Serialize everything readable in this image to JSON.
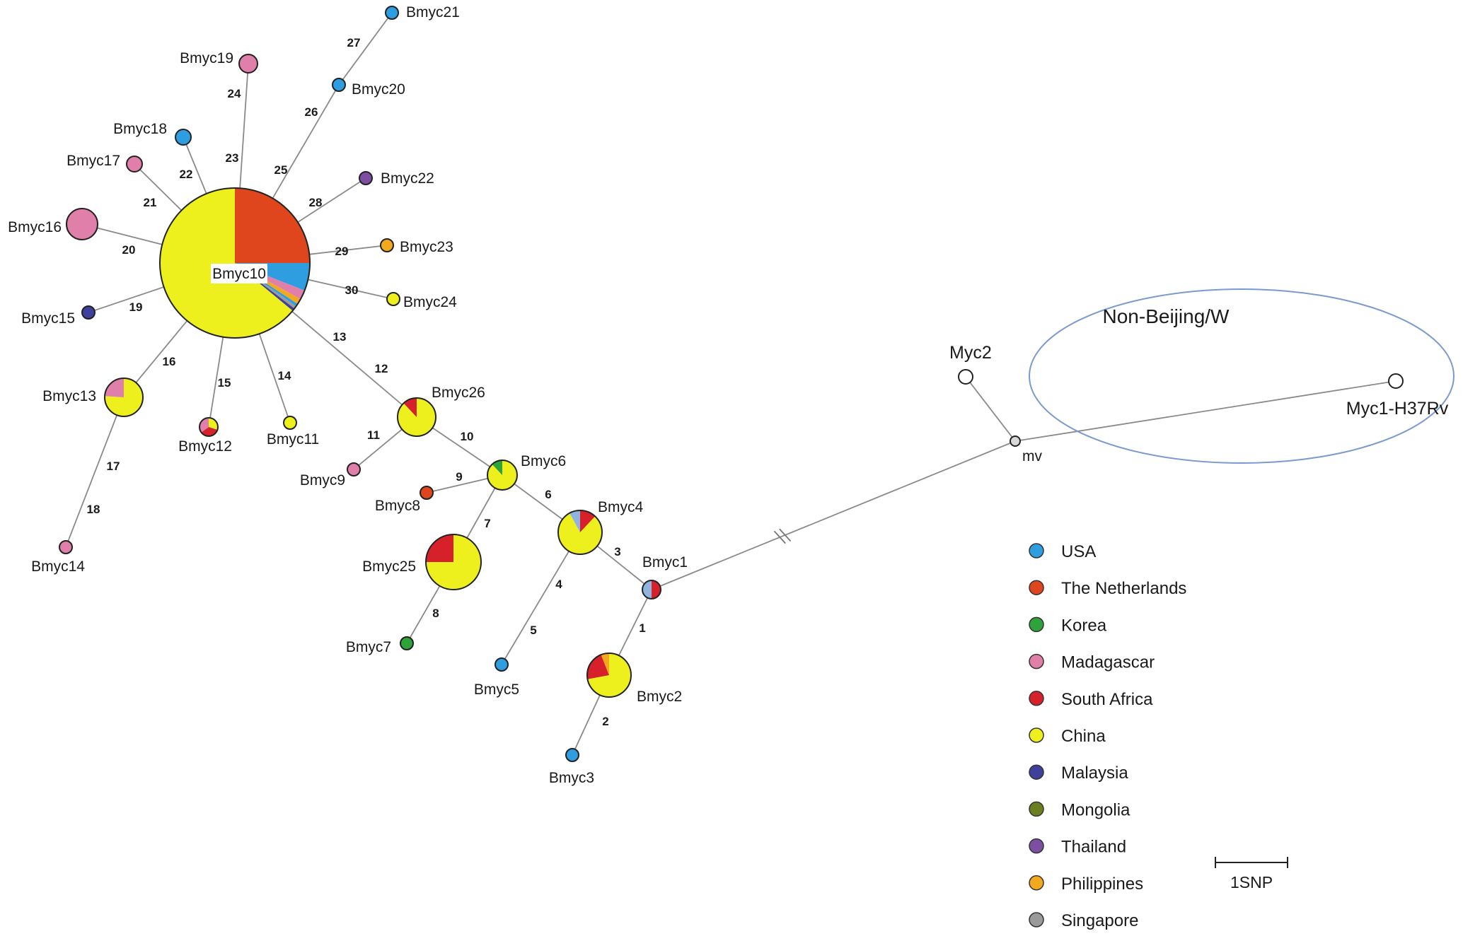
{
  "colors": {
    "usa": "#2f9ee0",
    "netherlands": "#e0461e",
    "korea": "#2ea33a",
    "madagascar": "#e07faa",
    "south_africa": "#d6202a",
    "china": "#eef01e",
    "malaysia": "#3f3f9c",
    "mongolia": "#6b7f1e",
    "thailand": "#7d4fa3",
    "philippines": "#f2a91e",
    "singapore": "#9a9a9a",
    "lightblue": "#8fb4de",
    "white": "#ffffff",
    "mv": "#d8d8d8"
  },
  "group": {
    "title": "Non-Beijing/W"
  },
  "scale": {
    "label": "1SNP"
  },
  "legend": [
    {
      "label": "USA",
      "color": "usa"
    },
    {
      "label": "The Netherlands",
      "color": "netherlands"
    },
    {
      "label": "Korea",
      "color": "korea"
    },
    {
      "label": "Madagascar",
      "color": "madagascar"
    },
    {
      "label": "South Africa",
      "color": "south_africa"
    },
    {
      "label": "China",
      "color": "china"
    },
    {
      "label": "Malaysia",
      "color": "malaysia"
    },
    {
      "label": "Mongolia",
      "color": "mongolia"
    },
    {
      "label": "Thailand",
      "color": "thailand"
    },
    {
      "label": "Philippines",
      "color": "philippines"
    },
    {
      "label": "Singapore",
      "color": "singapore"
    }
  ],
  "nodes": [
    {
      "id": "Bmyc10",
      "label": "Bmyc10",
      "slices": [
        {
          "color": "netherlands",
          "share": 0.25
        },
        {
          "color": "usa",
          "share": 0.06
        },
        {
          "color": "madagascar",
          "share": 0.02
        },
        {
          "color": "philippines",
          "share": 0.012
        },
        {
          "color": "usa",
          "share": 0.006
        },
        {
          "color": "singapore",
          "share": 0.006
        },
        {
          "color": "malaysia",
          "share": 0.006
        },
        {
          "color": "china",
          "share": 0.64
        }
      ]
    },
    {
      "id": "Bmyc1",
      "label": "Bmyc1",
      "slices": [
        {
          "color": "south_africa",
          "share": 0.5
        },
        {
          "color": "lightblue",
          "share": 0.5
        }
      ]
    },
    {
      "id": "Bmyc2",
      "label": "Bmyc2",
      "slices": [
        {
          "color": "china",
          "share": 0.72
        },
        {
          "color": "south_africa",
          "share": 0.22
        },
        {
          "color": "philippines",
          "share": 0.06
        }
      ]
    },
    {
      "id": "Bmyc3",
      "label": "Bmyc3",
      "slices": [
        {
          "color": "usa",
          "share": 1
        }
      ]
    },
    {
      "id": "Bmyc4",
      "label": "Bmyc4",
      "slices": [
        {
          "color": "south_africa",
          "share": 0.12
        },
        {
          "color": "china",
          "share": 0.8
        },
        {
          "color": "lightblue",
          "share": 0.08
        }
      ]
    },
    {
      "id": "Bmyc5",
      "label": "Bmyc5",
      "slices": [
        {
          "color": "usa",
          "share": 1
        }
      ]
    },
    {
      "id": "Bmyc6",
      "label": "Bmyc6",
      "slices": [
        {
          "color": "china",
          "share": 0.88
        },
        {
          "color": "korea",
          "share": 0.12
        }
      ]
    },
    {
      "id": "Bmyc7",
      "label": "Bmyc7",
      "slices": [
        {
          "color": "korea",
          "share": 1
        }
      ]
    },
    {
      "id": "Bmyc8",
      "label": "Bmyc8",
      "slices": [
        {
          "color": "netherlands",
          "share": 1
        }
      ]
    },
    {
      "id": "Bmyc9",
      "label": "Bmyc9",
      "slices": [
        {
          "color": "madagascar",
          "share": 1
        }
      ]
    },
    {
      "id": "Bmyc11",
      "label": "Bmyc11",
      "slices": [
        {
          "color": "china",
          "share": 1
        }
      ]
    },
    {
      "id": "Bmyc12",
      "label": "Bmyc12",
      "slices": [
        {
          "color": "china",
          "share": 0.3
        },
        {
          "color": "south_africa",
          "share": 0.35
        },
        {
          "color": "madagascar",
          "share": 0.35
        }
      ]
    },
    {
      "id": "Bmyc13",
      "label": "Bmyc13",
      "slices": [
        {
          "color": "china",
          "share": 0.76
        },
        {
          "color": "madagascar",
          "share": 0.24
        }
      ]
    },
    {
      "id": "Bmyc14",
      "label": "Bmyc14",
      "slices": [
        {
          "color": "madagascar",
          "share": 1
        }
      ]
    },
    {
      "id": "Bmyc15",
      "label": "Bmyc15",
      "slices": [
        {
          "color": "malaysia",
          "share": 1
        }
      ]
    },
    {
      "id": "Bmyc16",
      "label": "Bmyc16",
      "slices": [
        {
          "color": "madagascar",
          "share": 1
        }
      ]
    },
    {
      "id": "Bmyc17",
      "label": "Bmyc17",
      "slices": [
        {
          "color": "madagascar",
          "share": 1
        }
      ]
    },
    {
      "id": "Bmyc18",
      "label": "Bmyc18",
      "slices": [
        {
          "color": "usa",
          "share": 1
        }
      ]
    },
    {
      "id": "Bmyc19",
      "label": "Bmyc19",
      "slices": [
        {
          "color": "madagascar",
          "share": 1
        }
      ]
    },
    {
      "id": "Bmyc20",
      "label": "Bmyc20",
      "slices": [
        {
          "color": "usa",
          "share": 1
        }
      ]
    },
    {
      "id": "Bmyc21",
      "label": "Bmyc21",
      "slices": [
        {
          "color": "usa",
          "share": 1
        }
      ]
    },
    {
      "id": "Bmyc22",
      "label": "Bmyc22",
      "slices": [
        {
          "color": "thailand",
          "share": 1
        }
      ]
    },
    {
      "id": "Bmyc23",
      "label": "Bmyc23",
      "slices": [
        {
          "color": "philippines",
          "share": 1
        }
      ]
    },
    {
      "id": "Bmyc24",
      "label": "Bmyc24",
      "slices": [
        {
          "color": "china",
          "share": 1
        }
      ]
    },
    {
      "id": "Bmyc25",
      "label": "Bmyc25",
      "slices": [
        {
          "color": "china",
          "share": 0.75
        },
        {
          "color": "south_africa",
          "share": 0.25
        }
      ]
    },
    {
      "id": "Bmyc26",
      "label": "Bmyc26",
      "slices": [
        {
          "color": "china",
          "share": 0.88
        },
        {
          "color": "south_africa",
          "share": 0.12
        }
      ]
    },
    {
      "id": "Myc2",
      "label": "Myc2",
      "slices": [
        {
          "color": "white",
          "share": 1
        }
      ]
    },
    {
      "id": "Myc1",
      "label": "Myc1-H37Rv",
      "slices": [
        {
          "color": "white",
          "share": 1
        }
      ]
    },
    {
      "id": "mv",
      "label": "mv",
      "slices": [
        {
          "color": "mv",
          "share": 1
        }
      ]
    }
  ],
  "edges": [
    {
      "from": "Bmyc1",
      "to": "Bmyc2",
      "label": "1"
    },
    {
      "from": "Bmyc2",
      "to": "Bmyc3",
      "label": "2"
    },
    {
      "from": "Bmyc1",
      "to": "Bmyc4",
      "label": "3"
    },
    {
      "from": "Bmyc4",
      "to": "Bmyc5",
      "label": "4"
    },
    {
      "from": "Bmyc4",
      "to": "Bmyc5",
      "label": "5"
    },
    {
      "from": "Bmyc4",
      "to": "Bmyc6",
      "label": "6"
    },
    {
      "from": "Bmyc6",
      "to": "Bmyc25",
      "label": "7"
    },
    {
      "from": "Bmyc25",
      "to": "Bmyc7",
      "label": "8"
    },
    {
      "from": "Bmyc6",
      "to": "Bmyc8",
      "label": "9"
    },
    {
      "from": "Bmyc6",
      "to": "Bmyc26",
      "label": "10"
    },
    {
      "from": "Bmyc26",
      "to": "Bmyc9",
      "label": "11"
    },
    {
      "from": "Bmyc26",
      "to": "Bmyc10",
      "label": "12"
    },
    {
      "from": "Bmyc26",
      "to": "Bmyc10",
      "label": "13"
    },
    {
      "from": "Bmyc10",
      "to": "Bmyc11",
      "label": "14"
    },
    {
      "from": "Bmyc10",
      "to": "Bmyc12",
      "label": "15"
    },
    {
      "from": "Bmyc10",
      "to": "Bmyc13",
      "label": "16"
    },
    {
      "from": "Bmyc13",
      "to": "Bmyc14",
      "label": "17"
    },
    {
      "from": "Bmyc13",
      "to": "Bmyc14",
      "label": "18"
    },
    {
      "from": "Bmyc10",
      "to": "Bmyc15",
      "label": "19"
    },
    {
      "from": "Bmyc10",
      "to": "Bmyc16",
      "label": "20"
    },
    {
      "from": "Bmyc10",
      "to": "Bmyc17",
      "label": "21"
    },
    {
      "from": "Bmyc10",
      "to": "Bmyc18",
      "label": "22"
    },
    {
      "from": "Bmyc10",
      "to": "Bmyc19",
      "label": "23"
    },
    {
      "from": "Bmyc10",
      "to": "Bmyc19",
      "label": "24"
    },
    {
      "from": "Bmyc10",
      "to": "Bmyc20",
      "label": "25"
    },
    {
      "from": "Bmyc10",
      "to": "Bmyc20",
      "label": "26"
    },
    {
      "from": "Bmyc20",
      "to": "Bmyc21",
      "label": "27"
    },
    {
      "from": "Bmyc10",
      "to": "Bmyc22",
      "label": "28"
    },
    {
      "from": "Bmyc10",
      "to": "Bmyc23",
      "label": "29"
    },
    {
      "from": "Bmyc10",
      "to": "Bmyc24",
      "label": "30"
    },
    {
      "from": "Bmyc1",
      "to": "mv",
      "label": ""
    },
    {
      "from": "mv",
      "to": "Myc2",
      "label": ""
    },
    {
      "from": "mv",
      "to": "Myc1",
      "label": ""
    }
  ]
}
